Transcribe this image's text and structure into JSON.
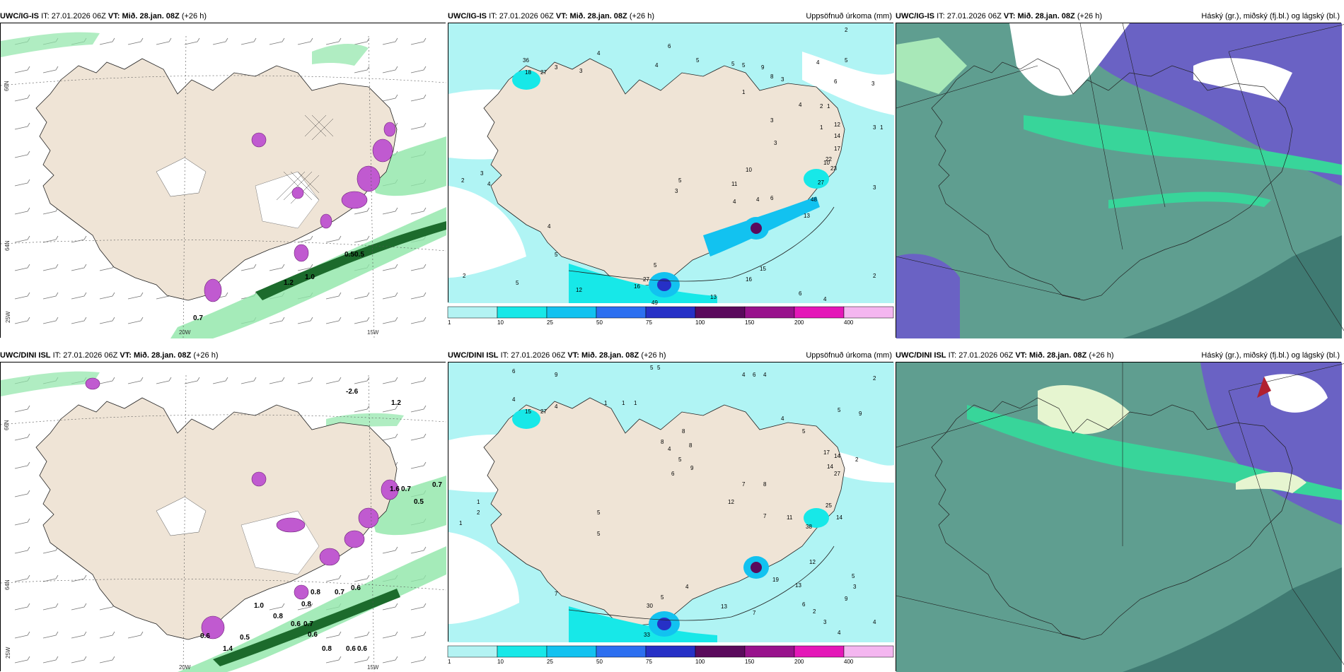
{
  "rows": [
    {
      "model": "UWC/IG-IS",
      "init_prefix": "IT:",
      "init_time": "27.01.2026 06Z",
      "valid_prefix": "VT:",
      "valid_time": "Mið. 28.jan. 08Z",
      "lead": "(+26 h)"
    },
    {
      "model": "UWC/DINI ISL",
      "init_prefix": "IT:",
      "init_time": "27.01.2026 06Z",
      "valid_prefix": "VT:",
      "valid_time": "Mið. 28.jan. 08Z",
      "lead": "(+26 h)"
    }
  ],
  "precip_title": "Uppsöfnuð úrkoma (mm)",
  "cloud_title": "Háský (gr.), miðský (fj.bl.) og lágský (bl.)",
  "grid_labels": {
    "lat66": "66N",
    "lat64": "64N",
    "lon25": "25W",
    "lon20": "20W",
    "lon15": "15W"
  },
  "precip_legend": {
    "ticks": [
      "1",
      "10",
      "25",
      "50",
      "75",
      "100",
      "150",
      "200",
      "400"
    ],
    "colors": [
      "#b3f3f3",
      "#17e8e8",
      "#12c2f0",
      "#2c6ff0",
      "#2630c6",
      "#5a0a5c",
      "#98128c",
      "#e417b8",
      "#f4b6f0"
    ]
  },
  "colors": {
    "land": "#efe4d6",
    "precip_light": "#b0f4f4",
    "cloud_base": "#5f9e90",
    "cloud_high": "#6a62c4",
    "cloud_green": "#38d59a",
    "wind_green": "#8fe6a8",
    "wind_dark": "#1c6b2c",
    "icing_magenta": "#c05ad0"
  },
  "wind_labels_top": [
    "0.7",
    "0.5",
    "0.5",
    "1.0",
    "1.2"
  ],
  "wind_labels_bottom": [
    "-2.6",
    "1.2",
    "0.7",
    "0.5",
    "1.6",
    "0.7",
    "0.6",
    "0.8",
    "0.8",
    "0.7",
    "1.0",
    "0.8",
    "0.6",
    "0.7",
    "0.6",
    "0.5",
    "1.4",
    "0.6",
    "0.8",
    "0.6",
    "0.6"
  ],
  "precip_numbers_top": [
    "2",
    "6",
    "4",
    "5",
    "5",
    "5",
    "3",
    "36",
    "18",
    "27",
    "3",
    "4",
    "4",
    "5",
    "9",
    "8",
    "3",
    "6",
    "3",
    "1",
    "2",
    "4",
    "3",
    "2",
    "3",
    "4",
    "1",
    "3",
    "1",
    "1",
    "12",
    "14",
    "10",
    "17",
    "22",
    "23",
    "27",
    "48",
    "13",
    "3",
    "3",
    "10",
    "11",
    "2",
    "4",
    "6",
    "5",
    "3",
    "4",
    "5",
    "27",
    "16",
    "49",
    "13",
    "15",
    "16",
    "12",
    "6",
    "4",
    "2",
    "5",
    "5",
    "4",
    "2"
  ],
  "precip_numbers_bottom": [
    "6",
    "9",
    "5",
    "5",
    "4",
    "6",
    "4",
    "2",
    "4",
    "14",
    "15",
    "27",
    "4",
    "5",
    "1",
    "1",
    "1",
    "8",
    "8",
    "5",
    "4",
    "8",
    "6",
    "9",
    "4",
    "5",
    "8",
    "2",
    "12",
    "17",
    "14",
    "27",
    "25",
    "14",
    "38",
    "11",
    "12",
    "7",
    "7",
    "9",
    "19",
    "13",
    "13",
    "30",
    "33",
    "5",
    "4",
    "7",
    "6",
    "2",
    "3",
    "4",
    "4",
    "5",
    "3",
    "1",
    "1",
    "2",
    "5",
    "5",
    "7",
    "9"
  ]
}
